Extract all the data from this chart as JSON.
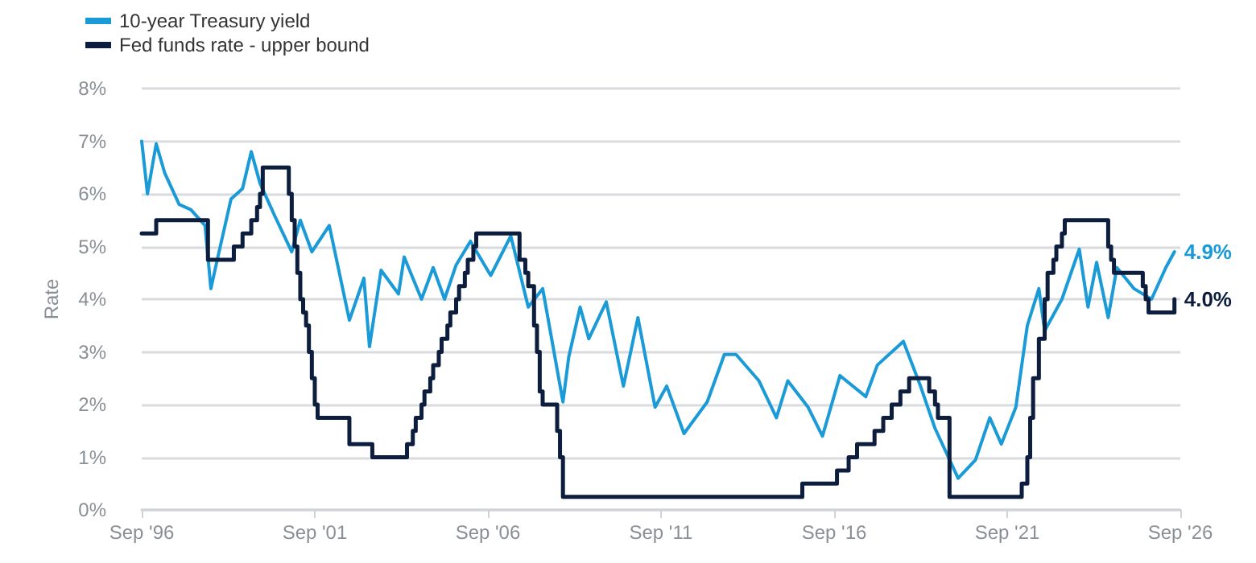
{
  "chart_data": {
    "type": "line",
    "ylabel": "Rate",
    "legend": "top left",
    "grid": "y",
    "marker": "none",
    "xlim": [
      "1996-09",
      "2026-09"
    ],
    "xticks": [
      {
        "value": "1996-09",
        "label": "Sep '96"
      },
      {
        "value": "2001-09",
        "label": "Sep '01"
      },
      {
        "value": "2006-09",
        "label": "Sep '06"
      },
      {
        "value": "2011-09",
        "label": "Sep '11"
      },
      {
        "value": "2016-09",
        "label": "Sep '16"
      },
      {
        "value": "2021-09",
        "label": "Sep '21"
      },
      {
        "value": "2026-09",
        "label": "Sep '26"
      }
    ],
    "ylim": [
      0,
      8
    ],
    "yticks": [
      {
        "value": 0,
        "label": "0%"
      },
      {
        "value": 1,
        "label": "1%"
      },
      {
        "value": 2,
        "label": "2%"
      },
      {
        "value": 3,
        "label": "3%"
      },
      {
        "value": 4,
        "label": "4%"
      },
      {
        "value": 5,
        "label": "5%"
      },
      {
        "value": 6,
        "label": "6%"
      },
      {
        "value": 7,
        "label": "7%"
      },
      {
        "value": 8,
        "label": "8%"
      }
    ],
    "series": [
      {
        "name": "10-year Treasury yield",
        "color": "#1a9bd7",
        "x": [
          "1996-09",
          "1996-11",
          "1997-02",
          "1997-05",
          "1997-10",
          "1998-02",
          "1998-07",
          "1998-09",
          "1998-11",
          "1999-04",
          "1999-08",
          "1999-11",
          "2000-02",
          "2000-07",
          "2001-01",
          "2001-04",
          "2001-08",
          "2002-02",
          "2002-09",
          "2003-02",
          "2003-04",
          "2003-08",
          "2004-02",
          "2004-04",
          "2004-10",
          "2005-02",
          "2005-06",
          "2005-10",
          "2006-03",
          "2006-10",
          "2007-05",
          "2007-11",
          "2008-04",
          "2008-11",
          "2009-01",
          "2009-05",
          "2009-08",
          "2010-02",
          "2010-08",
          "2011-01",
          "2011-07",
          "2011-11",
          "2012-05",
          "2013-01",
          "2013-07",
          "2013-11",
          "2014-07",
          "2015-01",
          "2015-05",
          "2015-12",
          "2016-05",
          "2016-11",
          "2017-08",
          "2017-12",
          "2018-09",
          "2019-03",
          "2019-08",
          "2020-04",
          "2020-10",
          "2021-03",
          "2021-07",
          "2021-12",
          "2022-04",
          "2022-08",
          "2022-10",
          "2023-04",
          "2023-10",
          "2024-01",
          "2024-04",
          "2024-08",
          "2024-11",
          "2025-05",
          "2025-11",
          "2026-04",
          "2026-07"
        ],
        "values": [
          7.0,
          6.0,
          6.95,
          6.4,
          5.8,
          5.7,
          5.4,
          4.2,
          4.7,
          5.9,
          6.1,
          6.8,
          6.2,
          5.6,
          4.9,
          5.5,
          4.9,
          5.4,
          3.6,
          4.4,
          3.1,
          4.55,
          4.1,
          4.8,
          4.0,
          4.6,
          4.0,
          4.65,
          5.1,
          4.45,
          5.2,
          3.85,
          4.2,
          2.05,
          2.9,
          3.85,
          3.25,
          3.95,
          2.35,
          3.65,
          1.95,
          2.35,
          1.45,
          2.05,
          2.95,
          2.95,
          2.45,
          1.75,
          2.45,
          1.95,
          1.4,
          2.55,
          2.15,
          2.75,
          3.2,
          2.35,
          1.55,
          0.6,
          0.95,
          1.75,
          1.25,
          1.95,
          3.5,
          4.2,
          3.4,
          4.0,
          4.95,
          3.85,
          4.7,
          3.65,
          4.6,
          4.2,
          4.0,
          4.6,
          4.9
        ],
        "value_labels": [
          null,
          null,
          null,
          null,
          null,
          null,
          null,
          null,
          null,
          null,
          null,
          null,
          null,
          null,
          null,
          null,
          null,
          null,
          null,
          null,
          null,
          null,
          null,
          null,
          null,
          null,
          null,
          null,
          null,
          null,
          null,
          null,
          null,
          null,
          null,
          null,
          null,
          null,
          null,
          null,
          null,
          null,
          null,
          null,
          null,
          null,
          null,
          null,
          null,
          null,
          null,
          null,
          null,
          null,
          null,
          null,
          null,
          null,
          null,
          null,
          null,
          null,
          null,
          null,
          null,
          null,
          null,
          null,
          null,
          null,
          null,
          null,
          null,
          null,
          "4.9%"
        ]
      },
      {
        "name": "Fed funds rate - upper bound",
        "type": "step",
        "color": "#0c1d3e",
        "x": [
          "1996-09",
          "1997-02",
          "1998-08",
          "1999-05",
          "1999-08",
          "1999-11",
          "2000-01",
          "2000-02",
          "2000-03",
          "2000-12",
          "2001-01",
          "2001-02",
          "2001-03",
          "2001-04",
          "2001-05",
          "2001-06",
          "2001-07",
          "2001-08",
          "2001-09",
          "2001-10",
          "2002-09",
          "2003-05",
          "2004-05",
          "2004-07",
          "2004-08",
          "2004-10",
          "2004-11",
          "2005-01",
          "2005-02",
          "2005-04",
          "2005-05",
          "2005-07",
          "2005-08",
          "2005-10",
          "2005-11",
          "2006-01",
          "2006-02",
          "2006-04",
          "2006-05",
          "2007-08",
          "2007-10",
          "2007-11",
          "2008-01",
          "2008-02",
          "2008-03",
          "2008-04",
          "2008-09",
          "2008-10",
          "2008-11",
          "2015-10",
          "2016-10",
          "2017-02",
          "2017-05",
          "2017-11",
          "2018-02",
          "2018-05",
          "2018-08",
          "2018-11",
          "2019-06",
          "2019-08",
          "2019-09",
          "2020-01",
          "2022-02",
          "2022-04",
          "2022-05",
          "2022-06",
          "2022-08",
          "2022-10",
          "2022-11",
          "2023-01",
          "2023-02",
          "2023-04",
          "2023-05",
          "2024-08",
          "2024-09",
          "2024-10",
          "2025-08",
          "2025-09",
          "2025-10",
          "2026-07"
        ],
        "values": [
          5.25,
          5.5,
          4.75,
          5.0,
          5.25,
          5.5,
          5.75,
          6.0,
          6.5,
          6.0,
          5.5,
          5.0,
          4.5,
          4.0,
          3.75,
          3.5,
          3.0,
          2.5,
          2.0,
          1.75,
          1.25,
          1.0,
          1.25,
          1.5,
          1.75,
          2.0,
          2.25,
          2.5,
          2.75,
          3.0,
          3.25,
          3.5,
          3.75,
          4.0,
          4.25,
          4.5,
          4.75,
          5.0,
          5.25,
          4.75,
          4.5,
          4.25,
          3.5,
          3.0,
          2.25,
          2.0,
          1.5,
          1.0,
          0.25,
          0.5,
          0.75,
          1.0,
          1.25,
          1.5,
          1.75,
          2.0,
          2.25,
          2.5,
          2.25,
          2.0,
          1.75,
          0.25,
          0.5,
          1.0,
          1.75,
          2.5,
          3.25,
          4.0,
          4.5,
          4.75,
          5.0,
          5.25,
          5.5,
          5.0,
          4.75,
          4.5,
          4.25,
          4.0,
          3.75,
          4.0
        ],
        "value_labels": [
          null,
          null,
          null,
          null,
          null,
          null,
          null,
          null,
          null,
          null,
          null,
          null,
          null,
          null,
          null,
          null,
          null,
          null,
          null,
          null,
          null,
          null,
          null,
          null,
          null,
          null,
          null,
          null,
          null,
          null,
          null,
          null,
          null,
          null,
          null,
          null,
          null,
          null,
          null,
          null,
          null,
          null,
          null,
          null,
          null,
          null,
          null,
          null,
          null,
          null,
          null,
          null,
          null,
          null,
          null,
          null,
          null,
          null,
          null,
          null,
          null,
          null,
          null,
          null,
          null,
          null,
          null,
          null,
          null,
          null,
          null,
          null,
          null,
          null,
          null,
          null,
          null,
          null,
          null,
          "4.0%"
        ]
      }
    ]
  }
}
